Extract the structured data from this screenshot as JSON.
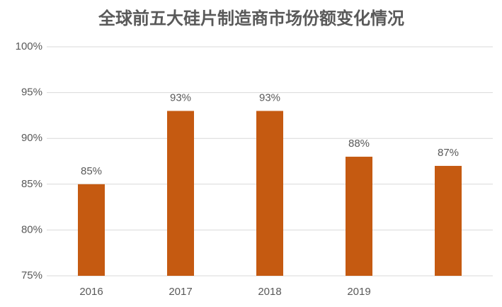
{
  "chart_data": {
    "type": "bar",
    "title": "全球前五大硅片制造商市场份额变化情况",
    "categories": [
      "2016",
      "2017",
      "2018",
      "2019",
      null
    ],
    "values": [
      85,
      93,
      93,
      88,
      87
    ],
    "value_labels": [
      "85%",
      "93%",
      "93%",
      "88%",
      "87%"
    ],
    "color": "#c55a11",
    "ylim": [
      75,
      100
    ],
    "yticks": [
      {
        "value": 75,
        "label": "75%"
      },
      {
        "value": 80,
        "label": "80%"
      },
      {
        "value": 85,
        "label": "85%"
      },
      {
        "value": 90,
        "label": "90%"
      },
      {
        "value": 95,
        "label": "95%"
      },
      {
        "value": 100,
        "label": "100%"
      }
    ],
    "grid": true
  }
}
